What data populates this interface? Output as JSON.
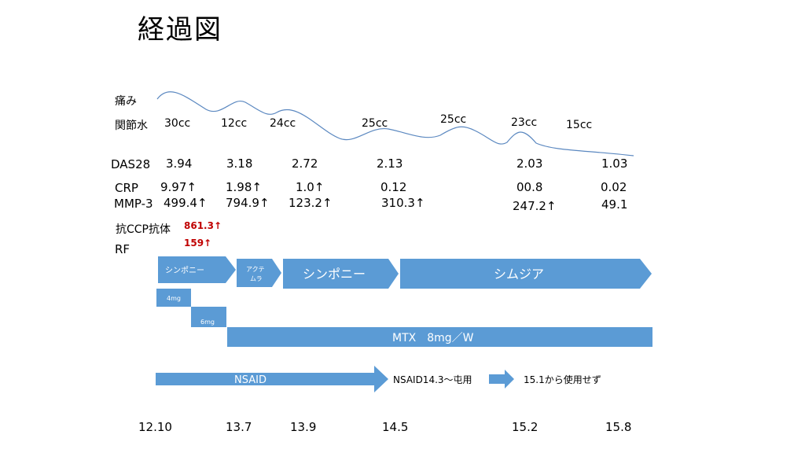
{
  "title": "経過図",
  "labels": {
    "pain": "痛み",
    "joint_fluid": "関節水",
    "das28": "DAS28",
    "crp": "CRP",
    "mmp3": "MMP-3",
    "anti_ccp": "抗CCP抗体",
    "rf": "RF"
  },
  "joint_fluid": [
    "30cc",
    "12cc",
    "24cc",
    "25cc",
    "25cc",
    "23cc",
    "15cc"
  ],
  "das28": [
    "3.94",
    "3.18",
    "2.72",
    "2.13",
    "2.03",
    "1.03"
  ],
  "crp": [
    "9.97↑",
    "1.98↑",
    "1.0↑",
    "0.12",
    "00.8",
    "0.02"
  ],
  "mmp3": [
    "499.4↑",
    "794.9↑",
    "123.2↑",
    "310.3↑",
    "247.2↑",
    "49.1"
  ],
  "anti_ccp_value": "861.3↑",
  "rf_value": "159↑",
  "bars": {
    "simponi_small": "シンポニー",
    "actemra_line1": "アクテ",
    "actemra_line2": "ムラ",
    "simponi_large": "シンポニー",
    "cimzia": "シムジア",
    "mtx_4mg": "4mg",
    "mtx_6mg": "6mg",
    "mtx_main": "MTX　8mg／W",
    "nsaid": "NSAID",
    "nsaid_note": "NSAID14.3～屯用",
    "nsaid_stop": "15.1から使用せず"
  },
  "timeline": [
    "12.10",
    "13.7",
    "13.9",
    "14.5",
    "15.2",
    "15.8"
  ],
  "colors": {
    "bar": "#5b9bd5",
    "pain_curve": "#5b88c0",
    "highlight": "#c00000"
  }
}
